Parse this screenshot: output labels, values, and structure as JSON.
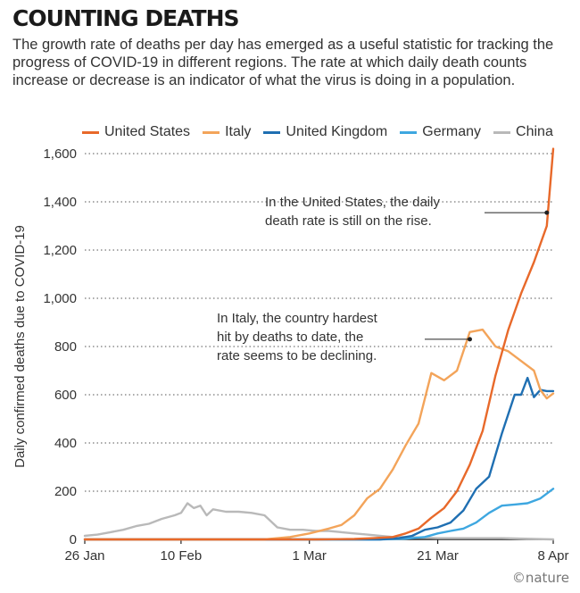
{
  "header": {
    "title": "COUNTING DEATHS",
    "subtitle": "The growth rate of deaths per day has emerged as a useful statistic for tracking the progress of COVID-19 in different regions. The rate at which daily death counts increase or decrease is an indicator of what the virus is doing in a population."
  },
  "credit": "©nature",
  "chart_data": {
    "type": "line",
    "title": "COUNTING DEATHS",
    "xlabel": "",
    "ylabel": "Daily confirmed deaths due to COVID-19",
    "ylim": [
      0,
      1600
    ],
    "yticks": [
      0,
      200,
      400,
      600,
      800,
      1000,
      1200,
      1400,
      1600
    ],
    "ytick_labels": [
      "0",
      "200",
      "400",
      "600",
      "800",
      "1,000",
      "1,200",
      "1,400",
      "1,600"
    ],
    "x_range_days": [
      0,
      73
    ],
    "xticks": [
      {
        "day": 0,
        "label": "26 Jan"
      },
      {
        "day": 15,
        "label": "10 Feb"
      },
      {
        "day": 35,
        "label": "1 Mar"
      },
      {
        "day": 55,
        "label": "21 Mar"
      },
      {
        "day": 73,
        "label": "8 Apr"
      }
    ],
    "x_note": "x = days since 26 Jan",
    "grid": "horizontal dotted",
    "legend_position": "top",
    "series": [
      {
        "name": "United States",
        "color": "#e8692a",
        "x": [
          0,
          36,
          42,
          45,
          48,
          50,
          52,
          54,
          56,
          58,
          60,
          62,
          64,
          66,
          68,
          70,
          72,
          73
        ],
        "y": [
          0,
          0,
          2,
          5,
          10,
          25,
          45,
          90,
          130,
          200,
          310,
          450,
          680,
          870,
          1020,
          1150,
          1300,
          1620
        ]
      },
      {
        "name": "Italy",
        "color": "#f3a45a",
        "x": [
          0,
          28,
          32,
          35,
          38,
          40,
          42,
          44,
          46,
          48,
          50,
          52,
          54,
          56,
          58,
          60,
          62,
          64,
          66,
          68,
          70,
          71,
          72,
          73
        ],
        "y": [
          0,
          0,
          10,
          25,
          45,
          60,
          100,
          170,
          210,
          290,
          390,
          480,
          690,
          660,
          700,
          860,
          870,
          800,
          780,
          740,
          700,
          620,
          585,
          605
        ]
      },
      {
        "name": "United Kingdom",
        "color": "#1f6fb2",
        "x": [
          0,
          46,
          49,
          51,
          53,
          55,
          57,
          59,
          61,
          63,
          65,
          67,
          68,
          69,
          70,
          71,
          72,
          73
        ],
        "y": [
          0,
          0,
          5,
          15,
          40,
          50,
          70,
          120,
          210,
          260,
          440,
          600,
          600,
          670,
          590,
          620,
          615,
          615
        ]
      },
      {
        "name": "Germany",
        "color": "#3ea7e0",
        "x": [
          0,
          46,
          50,
          53,
          55,
          57,
          59,
          61,
          63,
          65,
          67,
          69,
          71,
          72,
          73
        ],
        "y": [
          0,
          0,
          3,
          10,
          25,
          35,
          45,
          70,
          110,
          140,
          145,
          150,
          170,
          190,
          210
        ]
      },
      {
        "name": "China",
        "color": "#b9b9b9",
        "x": [
          0,
          2,
          4,
          6,
          8,
          10,
          12,
          14,
          15,
          16,
          17,
          18,
          19,
          20,
          22,
          24,
          26,
          28,
          30,
          32,
          34,
          36,
          38,
          40,
          42,
          44,
          46,
          48,
          50,
          55,
          60,
          65,
          70,
          73
        ],
        "y": [
          15,
          20,
          30,
          40,
          55,
          65,
          85,
          100,
          110,
          150,
          130,
          140,
          100,
          125,
          115,
          115,
          110,
          100,
          50,
          40,
          40,
          35,
          35,
          30,
          25,
          20,
          15,
          10,
          10,
          5,
          5,
          5,
          2,
          0
        ]
      }
    ],
    "annotations": [
      {
        "text": [
          "In the United States, the daily",
          "death rate is still on the rise."
        ],
        "day": 72,
        "value": 1355
      },
      {
        "text": [
          "In Italy, the country hardest",
          "hit by deaths to date, the",
          "rate seems to be declining."
        ],
        "day": 60,
        "value": 830
      }
    ]
  }
}
